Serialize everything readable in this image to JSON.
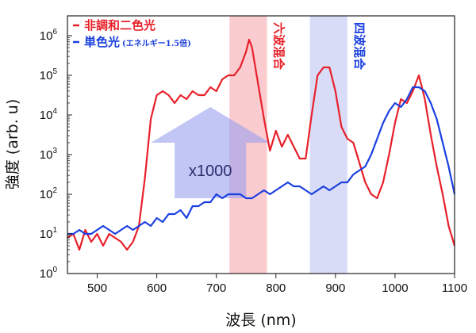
{
  "chart_data": {
    "type": "line",
    "xlabel": "波長 (nm)",
    "ylabel": "強度 (arb. u)",
    "xlim": [
      450,
      1100
    ],
    "ylim_log10": [
      0,
      6.5
    ],
    "y_scale": "log",
    "x_ticks": [
      500,
      600,
      700,
      800,
      900,
      1000,
      1100
    ],
    "y_ticks": [
      {
        "exp": 0,
        "base": "10",
        "sup": "0"
      },
      {
        "exp": 1,
        "base": "10",
        "sup": "1"
      },
      {
        "exp": 2,
        "base": "10",
        "sup": "2"
      },
      {
        "exp": 3,
        "base": "10",
        "sup": "3"
      },
      {
        "exp": 4,
        "base": "10",
        "sup": "4"
      },
      {
        "exp": 5,
        "base": "10",
        "sup": "5"
      },
      {
        "exp": 6,
        "base": "10",
        "sup": "6"
      }
    ],
    "legend": [
      {
        "label": "非調和二色光",
        "note": "",
        "color": "#e8202a"
      },
      {
        "label": "単色光",
        "note": "(エネルギー1.5倍)",
        "color": "#1a3fe0"
      }
    ],
    "bands": [
      {
        "x0": 722,
        "x1": 785,
        "color": "#f5a0a8",
        "label": "六波混合",
        "label_color": "#e8202a"
      },
      {
        "x0": 857,
        "x1": 920,
        "color": "#b8bff0",
        "label": "四波混合",
        "label_color": "#1a3fe0"
      }
    ],
    "annotation": {
      "text": "x1000",
      "x_center": 690,
      "y_from_log": 1.9,
      "y_to_log": 4.2
    },
    "series": [
      {
        "name": "非調和二色光",
        "color": "#e8202a",
        "x": [
          450,
          460,
          470,
          480,
          490,
          500,
          510,
          520,
          530,
          540,
          550,
          560,
          570,
          580,
          590,
          600,
          610,
          620,
          630,
          640,
          650,
          660,
          670,
          680,
          690,
          700,
          710,
          720,
          730,
          740,
          750,
          755,
          760,
          770,
          780,
          790,
          800,
          810,
          820,
          830,
          840,
          850,
          860,
          870,
          880,
          890,
          900,
          910,
          920,
          930,
          940,
          950,
          960,
          970,
          980,
          990,
          1000,
          1010,
          1020,
          1030,
          1040,
          1050,
          1060,
          1070,
          1080,
          1090,
          1100
        ],
        "y": [
          0.9,
          1.0,
          0.6,
          1.1,
          0.8,
          1.0,
          0.7,
          1.0,
          0.9,
          0.8,
          0.6,
          0.8,
          1.2,
          2.4,
          3.9,
          4.5,
          4.6,
          4.5,
          4.3,
          4.5,
          4.4,
          4.6,
          4.5,
          4.5,
          4.7,
          4.6,
          4.9,
          5.0,
          5.0,
          5.2,
          5.6,
          5.9,
          5.7,
          4.8,
          3.9,
          3.1,
          3.6,
          3.2,
          3.5,
          3.2,
          2.9,
          2.9,
          4.0,
          5.0,
          5.2,
          5.2,
          4.6,
          3.7,
          3.4,
          3.3,
          2.8,
          2.3,
          2.0,
          1.9,
          2.3,
          3.0,
          3.8,
          4.4,
          4.3,
          4.6,
          5.0,
          4.4,
          3.5,
          2.7,
          2.0,
          1.2,
          0.7
        ]
      },
      {
        "name": "単色光",
        "color": "#1a3fe0",
        "x": [
          450,
          460,
          470,
          480,
          490,
          500,
          510,
          520,
          530,
          540,
          550,
          560,
          570,
          580,
          590,
          600,
          610,
          620,
          630,
          640,
          650,
          660,
          670,
          680,
          690,
          700,
          710,
          720,
          730,
          740,
          750,
          760,
          770,
          780,
          790,
          800,
          810,
          820,
          830,
          840,
          850,
          860,
          870,
          880,
          890,
          900,
          910,
          920,
          930,
          940,
          950,
          960,
          970,
          980,
          990,
          1000,
          1010,
          1020,
          1030,
          1040,
          1050,
          1060,
          1070,
          1080,
          1090,
          1100
        ],
        "y": [
          1.0,
          1.0,
          1.1,
          1.0,
          1.0,
          1.1,
          1.2,
          1.1,
          1.0,
          1.1,
          1.2,
          1.1,
          1.2,
          1.3,
          1.2,
          1.4,
          1.3,
          1.5,
          1.5,
          1.6,
          1.4,
          1.7,
          1.7,
          1.8,
          1.8,
          2.0,
          1.9,
          2.0,
          2.0,
          2.0,
          1.9,
          1.9,
          2.0,
          2.1,
          2.0,
          2.1,
          2.2,
          2.3,
          2.2,
          2.2,
          2.1,
          2.0,
          2.1,
          2.2,
          2.1,
          2.2,
          2.3,
          2.3,
          2.5,
          2.6,
          2.7,
          3.0,
          3.4,
          3.8,
          4.1,
          4.3,
          4.2,
          4.4,
          4.7,
          4.7,
          4.6,
          4.3,
          3.9,
          3.3,
          2.7,
          2.0
        ]
      }
    ]
  }
}
